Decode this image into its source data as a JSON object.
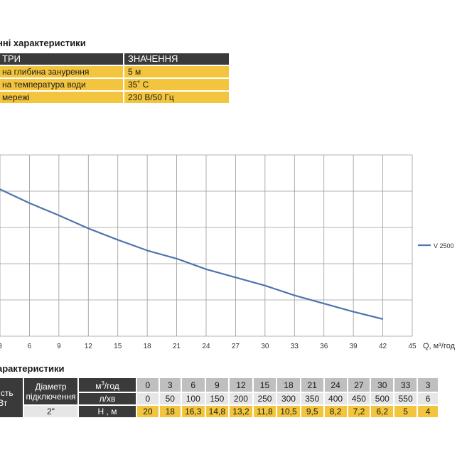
{
  "params_title": "нні характеристики",
  "params_table": {
    "header": [
      "ТРИ",
      "ЗНАЧЕННЯ"
    ],
    "rows": [
      [
        "на глибина занурення",
        "5 м"
      ],
      [
        "на температура води",
        "35˚ С"
      ],
      [
        "мережі",
        "230 В/50 Гц"
      ]
    ]
  },
  "chart_data": {
    "type": "line",
    "xlabel": "Q, м³/год",
    "ylabel": "",
    "xlim": [
      3,
      45
    ],
    "ylim": [
      0,
      22.2
    ],
    "x_ticks": [
      "3",
      "6",
      "9",
      "12",
      "15",
      "18",
      "21",
      "24",
      "27",
      "30",
      "33",
      "36",
      "39",
      "42",
      "45"
    ],
    "grid": true,
    "legend": "right",
    "series": [
      {
        "name": "V 2500",
        "color": "#4f74b0",
        "x": [
          3,
          6,
          9,
          12,
          15,
          18,
          21,
          24,
          27,
          30,
          33,
          36,
          39,
          42
        ],
        "y": [
          18,
          16.3,
          14.8,
          13.2,
          11.8,
          10.5,
          9.5,
          8.2,
          7.2,
          6.2,
          5,
          4,
          3,
          2.1
        ]
      }
    ]
  },
  "perf_title": "арактеристики",
  "perf_table": {
    "power_label": [
      "жність",
      "кВт"
    ],
    "power_value": ",5",
    "diam_label": [
      "Діаметр",
      "підключення"
    ],
    "diam_value": "2\"",
    "unit_m3": "м³/год",
    "unit_l": "л/хв",
    "unit_h": "Н , м",
    "m3": [
      "0",
      "3",
      "6",
      "9",
      "12",
      "15",
      "18",
      "21",
      "24",
      "27",
      "30",
      "33",
      "3"
    ],
    "l": [
      "0",
      "50",
      "100",
      "150",
      "200",
      "250",
      "300",
      "350",
      "400",
      "450",
      "500",
      "550",
      "6"
    ],
    "h": [
      "20",
      "18",
      "16,3",
      "14,8",
      "13,2",
      "11,8",
      "10,5",
      "9,5",
      "8,2",
      "7,2",
      "6,2",
      "5",
      "4"
    ]
  }
}
